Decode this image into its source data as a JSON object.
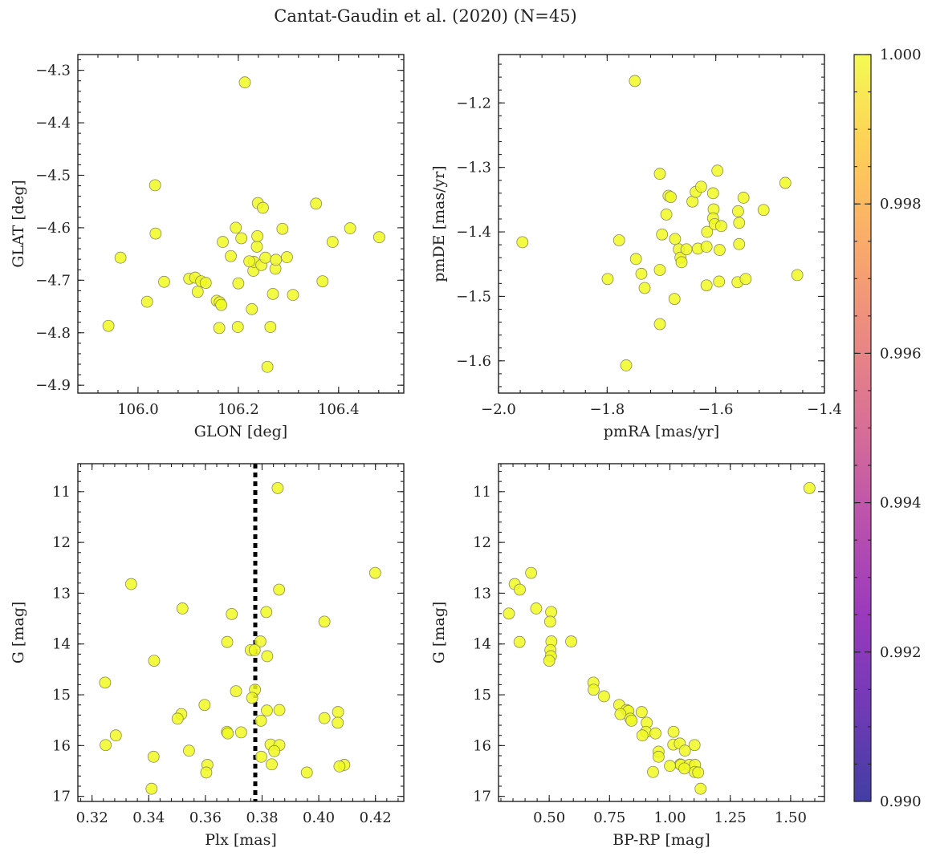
{
  "figure": {
    "title": "Cantat-Gaudin et al. (2020) (N=45)"
  },
  "colorbar": {
    "range": [
      0.99,
      1.0
    ],
    "ticks": [
      0.99,
      0.992,
      0.994,
      0.996,
      0.998,
      1.0
    ],
    "tick_labels": [
      "0.990",
      "0.992",
      "0.994",
      "0.996",
      "0.998",
      "1.000"
    ],
    "colormap": "plasma"
  },
  "point_color": "#f0f921",
  "chart_data": [
    {
      "type": "scatter",
      "id": "lb",
      "xlabel": "GLON [deg]",
      "ylabel": "GLAT [deg]",
      "xlim": [
        105.88,
        106.53
      ],
      "ylim": [
        -4.915,
        -4.27
      ],
      "xticks": [
        106.0,
        106.2,
        106.4
      ],
      "xtick_labels": [
        "106.0",
        "106.2",
        "106.4"
      ],
      "yticks": [
        -4.3,
        -4.4,
        -4.5,
        -4.6,
        -4.7,
        -4.8,
        -4.9
      ],
      "ytick_labels": [
        "−4.3",
        "−4.4",
        "−4.5",
        "−4.6",
        "−4.7",
        "−4.8",
        "−4.9"
      ],
      "invert_y": false,
      "points": [
        [
          106.213,
          -4.323
        ],
        [
          106.034,
          -4.519
        ],
        [
          106.035,
          -4.611
        ],
        [
          105.941,
          -4.787
        ],
        [
          105.965,
          -4.657
        ],
        [
          106.018,
          -4.741
        ],
        [
          106.052,
          -4.703
        ],
        [
          106.102,
          -4.697
        ],
        [
          106.114,
          -4.695
        ],
        [
          106.119,
          -4.722
        ],
        [
          106.126,
          -4.702
        ],
        [
          106.135,
          -4.705
        ],
        [
          106.157,
          -4.739
        ],
        [
          106.163,
          -4.742
        ],
        [
          106.162,
          -4.791
        ],
        [
          106.166,
          -4.747
        ],
        [
          106.169,
          -4.627
        ],
        [
          106.185,
          -4.654
        ],
        [
          106.195,
          -4.6
        ],
        [
          106.2,
          -4.706
        ],
        [
          106.199,
          -4.789
        ],
        [
          106.206,
          -4.62
        ],
        [
          106.227,
          -4.755
        ],
        [
          106.23,
          -4.682
        ],
        [
          106.231,
          -4.665
        ],
        [
          106.237,
          -4.636
        ],
        [
          106.238,
          -4.616
        ],
        [
          106.239,
          -4.553
        ],
        [
          106.246,
          -4.671
        ],
        [
          106.249,
          -4.562
        ],
        [
          106.254,
          -4.657
        ],
        [
          106.258,
          -4.865
        ],
        [
          106.264,
          -4.789
        ],
        [
          106.269,
          -4.726
        ],
        [
          106.274,
          -4.678
        ],
        [
          106.275,
          -4.661
        ],
        [
          106.288,
          -4.602
        ],
        [
          106.297,
          -4.656
        ],
        [
          106.309,
          -4.728
        ],
        [
          106.355,
          -4.554
        ],
        [
          106.368,
          -4.702
        ],
        [
          106.388,
          -4.627
        ],
        [
          106.423,
          -4.601
        ],
        [
          106.481,
          -4.618
        ],
        [
          106.222,
          -4.664
        ]
      ]
    },
    {
      "type": "scatter",
      "id": "pm",
      "xlabel": "pmRA [mas/yr]",
      "ylabel": "pmDE [mas/yr]",
      "xlim": [
        -2.0,
        -1.4
      ],
      "ylim": [
        -1.65,
        -1.125
      ],
      "xticks": [
        -2.0,
        -1.8,
        -1.6,
        -1.4
      ],
      "xtick_labels": [
        "−2.0",
        "−1.8",
        "−1.6",
        "−1.4"
      ],
      "yticks": [
        -1.2,
        -1.3,
        -1.4,
        -1.5,
        -1.6
      ],
      "ytick_labels": [
        "−1.2",
        "−1.3",
        "−1.4",
        "−1.5",
        "−1.6"
      ],
      "invert_y": false,
      "points": [
        [
          -1.749,
          -1.166
        ],
        [
          -1.956,
          -1.416
        ],
        [
          -1.799,
          -1.473
        ],
        [
          -1.778,
          -1.413
        ],
        [
          -1.747,
          -1.442
        ],
        [
          -1.737,
          -1.465
        ],
        [
          -1.731,
          -1.487
        ],
        [
          -1.703,
          -1.31
        ],
        [
          -1.699,
          -1.404
        ],
        [
          -1.703,
          -1.459
        ],
        [
          -1.703,
          -1.543
        ],
        [
          -1.765,
          -1.607
        ],
        [
          -1.691,
          -1.373
        ],
        [
          -1.687,
          -1.344
        ],
        [
          -1.683,
          -1.346
        ],
        [
          -1.675,
          -1.411
        ],
        [
          -1.676,
          -1.504
        ],
        [
          -1.668,
          -1.427
        ],
        [
          -1.665,
          -1.44
        ],
        [
          -1.663,
          -1.447
        ],
        [
          -1.654,
          -1.427
        ],
        [
          -1.643,
          -1.353
        ],
        [
          -1.637,
          -1.338
        ],
        [
          -1.633,
          -1.426
        ],
        [
          -1.627,
          -1.33
        ],
        [
          -1.616,
          -1.4
        ],
        [
          -1.617,
          -1.423
        ],
        [
          -1.617,
          -1.483
        ],
        [
          -1.605,
          -1.34
        ],
        [
          -1.604,
          -1.365
        ],
        [
          -1.605,
          -1.379
        ],
        [
          -1.602,
          -1.388
        ],
        [
          -1.597,
          -1.305
        ],
        [
          -1.593,
          -1.428
        ],
        [
          -1.594,
          -1.477
        ],
        [
          -1.59,
          -1.391
        ],
        [
          -1.559,
          -1.368
        ],
        [
          -1.56,
          -1.478
        ],
        [
          -1.557,
          -1.386
        ],
        [
          -1.557,
          -1.419
        ],
        [
          -1.549,
          -1.347
        ],
        [
          -1.545,
          -1.473
        ],
        [
          -1.512,
          -1.366
        ],
        [
          -1.472,
          -1.324
        ],
        [
          -1.45,
          -1.467
        ]
      ]
    },
    {
      "type": "scatter",
      "id": "plx",
      "xlabel": "Plx [mas]",
      "ylabel": "G [mag]",
      "xlim": [
        0.315,
        0.43
      ],
      "ylim": [
        10.45,
        17.1
      ],
      "xticks": [
        0.32,
        0.34,
        0.36,
        0.38,
        0.4,
        0.42
      ],
      "xtick_labels": [
        "0.32",
        "0.34",
        "0.36",
        "0.38",
        "0.40",
        "0.42"
      ],
      "yticks": [
        11,
        12,
        13,
        14,
        15,
        16,
        17
      ],
      "ytick_labels": [
        "11",
        "12",
        "13",
        "14",
        "15",
        "16",
        "17"
      ],
      "invert_y": true,
      "vline": 0.3776,
      "points": [
        [
          0.3855,
          10.93
        ],
        [
          0.4199,
          12.6
        ],
        [
          0.3338,
          12.82
        ],
        [
          0.386,
          12.93
        ],
        [
          0.3519,
          13.3
        ],
        [
          0.3693,
          13.41
        ],
        [
          0.3815,
          13.37
        ],
        [
          0.402,
          13.56
        ],
        [
          0.3677,
          13.96
        ],
        [
          0.3794,
          13.95
        ],
        [
          0.376,
          14.12
        ],
        [
          0.3774,
          14.12
        ],
        [
          0.3818,
          14.24
        ],
        [
          0.3419,
          14.33
        ],
        [
          0.3246,
          14.76
        ],
        [
          0.3708,
          14.93
        ],
        [
          0.3775,
          14.9
        ],
        [
          0.3765,
          15.06
        ],
        [
          0.3597,
          15.2
        ],
        [
          0.3515,
          15.38
        ],
        [
          0.3502,
          15.47
        ],
        [
          0.3861,
          15.3
        ],
        [
          0.3817,
          15.31
        ],
        [
          0.3796,
          15.51
        ],
        [
          0.402,
          15.46
        ],
        [
          0.4068,
          15.34
        ],
        [
          0.4067,
          15.55
        ],
        [
          0.3676,
          15.73
        ],
        [
          0.3679,
          15.76
        ],
        [
          0.3726,
          15.74
        ],
        [
          0.3284,
          15.8
        ],
        [
          0.3248,
          15.99
        ],
        [
          0.383,
          15.98
        ],
        [
          0.3861,
          15.99
        ],
        [
          0.3843,
          16.11
        ],
        [
          0.3542,
          16.1
        ],
        [
          0.3417,
          16.22
        ],
        [
          0.3797,
          16.22
        ],
        [
          0.3607,
          16.38
        ],
        [
          0.3834,
          16.37
        ],
        [
          0.409,
          16.38
        ],
        [
          0.4073,
          16.41
        ],
        [
          0.3603,
          16.53
        ],
        [
          0.3958,
          16.53
        ],
        [
          0.341,
          16.85
        ]
      ]
    },
    {
      "type": "scatter",
      "id": "cmd",
      "xlabel": "BP-RP [mag]",
      "ylabel": "G [mag]",
      "xlim": [
        0.29,
        1.64
      ],
      "ylim": [
        10.45,
        17.1
      ],
      "xticks": [
        0.5,
        0.75,
        1.0,
        1.25,
        1.5
      ],
      "xtick_labels": [
        "0.50",
        "0.75",
        "1.00",
        "1.25",
        "1.50"
      ],
      "yticks": [
        11,
        12,
        13,
        14,
        15,
        16,
        17
      ],
      "ytick_labels": [
        "11",
        "12",
        "13",
        "14",
        "15",
        "16",
        "17"
      ],
      "invert_y": true,
      "points": [
        [
          1.578,
          10.93
        ],
        [
          0.425,
          12.6
        ],
        [
          0.357,
          12.82
        ],
        [
          0.378,
          12.93
        ],
        [
          0.333,
          13.4
        ],
        [
          0.446,
          13.3
        ],
        [
          0.508,
          13.37
        ],
        [
          0.504,
          13.56
        ],
        [
          0.377,
          13.96
        ],
        [
          0.509,
          13.95
        ],
        [
          0.591,
          13.95
        ],
        [
          0.505,
          14.12
        ],
        [
          0.507,
          14.24
        ],
        [
          0.5,
          14.33
        ],
        [
          0.683,
          14.76
        ],
        [
          0.684,
          14.9
        ],
        [
          0.727,
          15.03
        ],
        [
          0.79,
          15.2
        ],
        [
          0.82,
          15.3
        ],
        [
          0.828,
          15.32
        ],
        [
          0.795,
          15.38
        ],
        [
          0.836,
          15.47
        ],
        [
          0.841,
          15.51
        ],
        [
          0.883,
          15.34
        ],
        [
          0.904,
          15.55
        ],
        [
          0.901,
          15.73
        ],
        [
          0.886,
          15.8
        ],
        [
          0.94,
          15.76
        ],
        [
          1.015,
          15.73
        ],
        [
          1.014,
          15.98
        ],
        [
          1.041,
          15.96
        ],
        [
          1.102,
          15.99
        ],
        [
          1.062,
          16.1
        ],
        [
          0.953,
          16.12
        ],
        [
          0.953,
          16.22
        ],
        [
          1.043,
          16.37
        ],
        [
          1.046,
          16.38
        ],
        [
          1.081,
          16.38
        ],
        [
          1.104,
          16.38
        ],
        [
          1.103,
          16.52
        ],
        [
          1.117,
          16.53
        ],
        [
          1.127,
          16.85
        ],
        [
          0.93,
          16.52
        ],
        [
          1.0,
          16.4
        ],
        [
          1.06,
          16.45
        ]
      ]
    }
  ]
}
